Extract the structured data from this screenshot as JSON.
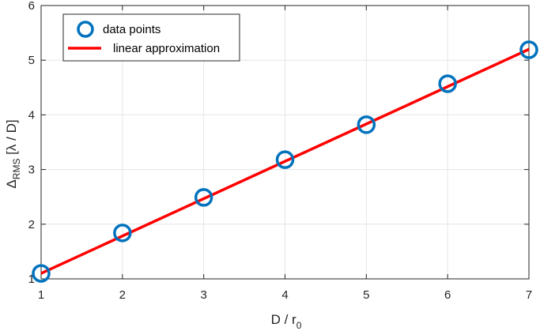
{
  "chart_data": {
    "type": "scatter",
    "title": "",
    "xlabel": {
      "main": "D / r",
      "sub": "0"
    },
    "ylabel": {
      "main": "Δ",
      "sub": "RMS",
      "rest": " [λ / D]"
    },
    "xlim": [
      1,
      7
    ],
    "ylim": [
      1,
      6
    ],
    "xticks": [
      "1",
      "2",
      "3",
      "4",
      "5",
      "6",
      "7"
    ],
    "yticks": [
      "1",
      "2",
      "3",
      "4",
      "5",
      "6"
    ],
    "grid": true,
    "legend_position": "top-left",
    "series": [
      {
        "name": "data points",
        "kind": "markers",
        "color": "#0072bd",
        "x": [
          1,
          2,
          3,
          4,
          5,
          6,
          7
        ],
        "y": [
          1.1,
          1.84,
          2.49,
          3.18,
          3.82,
          4.57,
          5.19
        ]
      },
      {
        "name": "linear approximation",
        "kind": "line",
        "color": "#ff0000",
        "x": [
          1,
          7
        ],
        "y": [
          1.1,
          5.2
        ]
      }
    ]
  }
}
